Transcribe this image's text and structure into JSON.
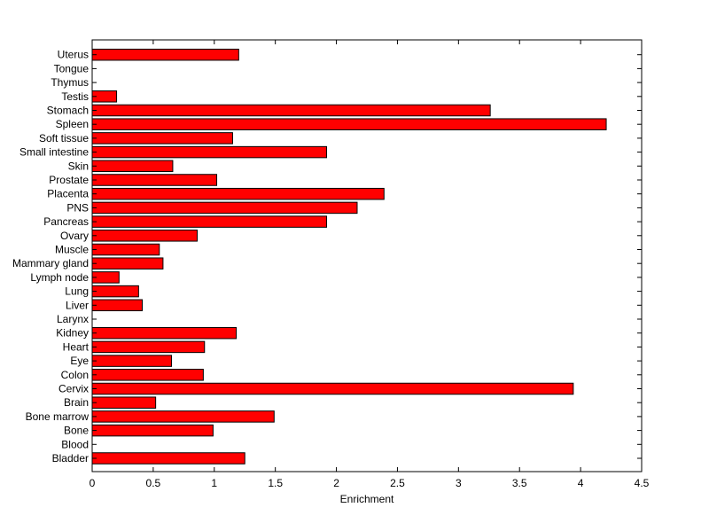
{
  "chart_data": {
    "type": "bar",
    "orientation": "horizontal",
    "categories": [
      "Bladder",
      "Blood",
      "Bone",
      "Bone marrow",
      "Brain",
      "Cervix",
      "Colon",
      "Eye",
      "Heart",
      "Kidney",
      "Larynx",
      "Liver",
      "Lung",
      "Lymph node",
      "Mammary gland",
      "Muscle",
      "Ovary",
      "Pancreas",
      "PNS",
      "Placenta",
      "Prostate",
      "Skin",
      "Small intestine",
      "Soft tissue",
      "Spleen",
      "Stomach",
      "Testis",
      "Thymus",
      "Tongue",
      "Uterus"
    ],
    "values": [
      1.25,
      0,
      0.99,
      1.49,
      0.52,
      3.94,
      0.91,
      0.65,
      0.92,
      1.18,
      0,
      0.41,
      0.38,
      0.22,
      0.58,
      0.55,
      0.86,
      1.92,
      2.17,
      2.39,
      1.02,
      0.66,
      1.92,
      1.15,
      4.21,
      3.26,
      0.2,
      0,
      0,
      1.2
    ],
    "title": "",
    "xlabel": "Enrichment",
    "ylabel": "",
    "xlim": [
      0,
      4.5
    ],
    "xticks": [
      "0",
      "0.5",
      "1",
      "1.5",
      "2",
      "2.5",
      "3",
      "3.5",
      "4",
      "4.5"
    ],
    "grid": false,
    "bar_color": "#ff0000"
  }
}
